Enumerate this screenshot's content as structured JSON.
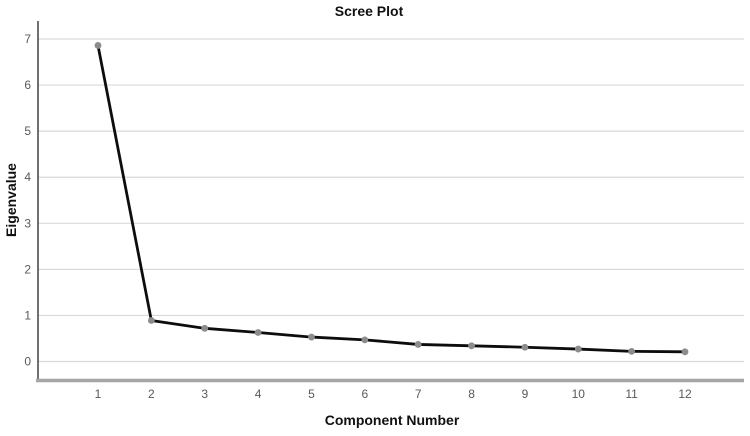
{
  "chart_data": {
    "type": "line",
    "title": "Scree Plot",
    "xlabel": "Component Number",
    "ylabel": "Eigenvalue",
    "x": [
      1,
      2,
      3,
      4,
      5,
      6,
      7,
      8,
      9,
      10,
      11,
      12
    ],
    "values": [
      6.86,
      0.89,
      0.72,
      0.63,
      0.53,
      0.47,
      0.37,
      0.34,
      0.31,
      0.27,
      0.22,
      0.21
    ],
    "series_name": "Eigenvalue",
    "xticks": [
      "1",
      "2",
      "3",
      "4",
      "5",
      "6",
      "7",
      "8",
      "9",
      "10",
      "11",
      "12"
    ],
    "yticks": [
      "0",
      "1",
      "2",
      "3",
      "4",
      "5",
      "6",
      "7"
    ],
    "ylim": [
      0,
      7.4
    ],
    "grid": "horizontal",
    "legend": "none",
    "colors": {
      "line": "#0d0d0d",
      "marker": "#8c8c8c",
      "gridline": "#d9d9d9",
      "y_axis_line": "#4d4d4d",
      "x_axis_line": "#a6a6a6",
      "tick_label": "#595959",
      "title_text": "#111111",
      "background": "#ffffff"
    }
  }
}
